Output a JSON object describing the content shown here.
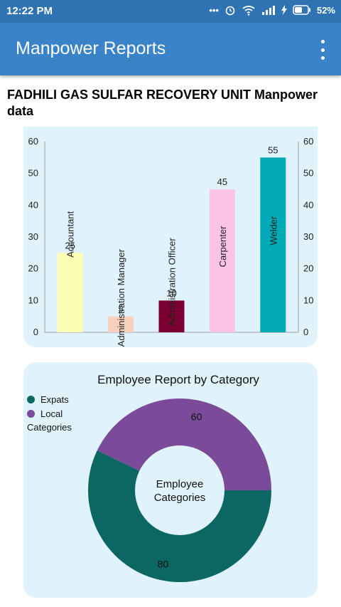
{
  "status_bar": {
    "time": "12:22 PM",
    "battery": "52%"
  },
  "app_bar": {
    "title": "Manpower Reports",
    "menu_icon": "more-vert-icon"
  },
  "page": {
    "heading": "FADHILI GAS SULFAR RECOVERY UNIT Manpower data"
  },
  "chart_data": [
    {
      "type": "bar",
      "categories": [
        "Accountant",
        "Administration Manager",
        "Administration Officer",
        "Carpenter",
        "Welder"
      ],
      "values": [
        25,
        5,
        10,
        45,
        55
      ],
      "colors": [
        "#fdfdb5",
        "#f8d0bf",
        "#7a0031",
        "#fbc3e8",
        "#00a9b6"
      ],
      "ylim": [
        0,
        60
      ],
      "yticks": [
        "0",
        "10",
        "20",
        "30",
        "40",
        "50",
        "60"
      ],
      "grid": false,
      "dual_axis": true
    },
    {
      "type": "pie",
      "title": "Employee Report by Category",
      "center_label": "Employee Categories",
      "labels": [
        "Local",
        "Expats"
      ],
      "values": [
        60,
        80
      ],
      "colors": [
        "#7b4a99",
        "#0c6762"
      ],
      "legend": {
        "entries": [
          "Expats",
          "Local"
        ],
        "subtitle": "Categories",
        "placement": "top-left"
      }
    }
  ]
}
